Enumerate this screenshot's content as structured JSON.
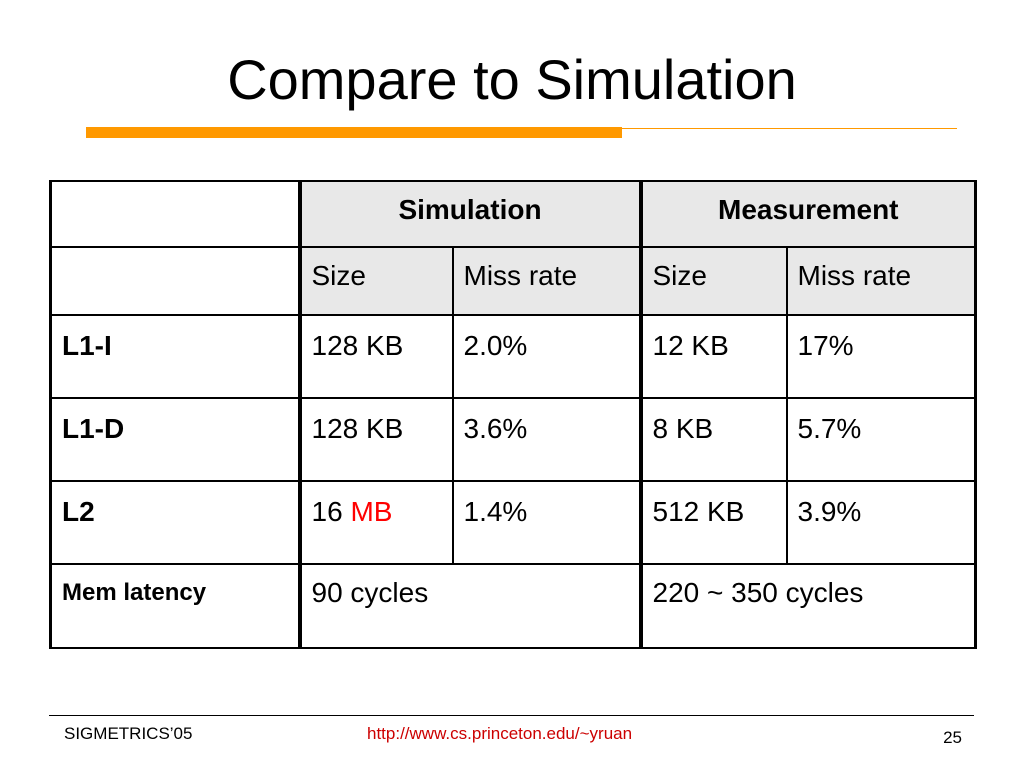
{
  "slide": {
    "title": "Compare to Simulation",
    "accent_color": "#ff9900"
  },
  "table": {
    "group_headers": [
      "Simulation",
      "Measurement"
    ],
    "sub_headers": [
      "Size",
      "Miss rate",
      "Size",
      "Miss rate"
    ],
    "rows": [
      {
        "label": "L1-I",
        "sim_size": "128 KB",
        "sim_miss": "2.0%",
        "meas_size": "12 KB",
        "meas_miss": "17%"
      },
      {
        "label": "L1-D",
        "sim_size": "128 KB",
        "sim_miss": "3.6%",
        "meas_size": "8 KB",
        "meas_miss": "5.7%"
      },
      {
        "label": "L2",
        "sim_size_num": "16",
        "sim_size_unit": "MB",
        "sim_miss": "1.4%",
        "meas_size": "512 KB",
        "meas_miss": "3.9%"
      }
    ],
    "mem_latency": {
      "label": "Mem latency",
      "simulation": "90 cycles",
      "measurement": "220 ~ 350 cycles"
    },
    "header_shade": "#e8e8e8",
    "highlight_color": "#ff0000"
  },
  "footer": {
    "left": "SIGMETRICS’05",
    "center": "http://www.cs.princeton.edu/~yruan",
    "page_number": "25",
    "link_color": "#cc0000"
  }
}
